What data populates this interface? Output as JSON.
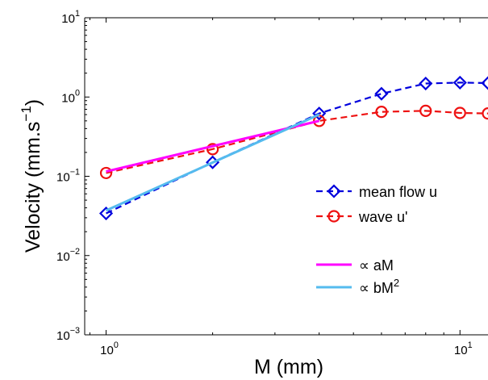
{
  "chart_data": {
    "type": "line",
    "xscale": "log",
    "yscale": "log",
    "xlim": [
      0.87,
      12
    ],
    "ylim": [
      0.001,
      10
    ],
    "x_ticks": [
      {
        "value": 1,
        "base": "10",
        "exp": "0"
      },
      {
        "value": 10,
        "base": "10",
        "exp": "1"
      }
    ],
    "y_ticks": [
      {
        "value": 0.001,
        "base": "10",
        "exp": "−3"
      },
      {
        "value": 0.01,
        "base": "10",
        "exp": "−2"
      },
      {
        "value": 0.1,
        "base": "10",
        "exp": "−1"
      },
      {
        "value": 1,
        "base": "10",
        "exp": "0"
      },
      {
        "value": 10,
        "base": "10",
        "exp": "1"
      }
    ],
    "xlabel": "M (mm)",
    "ylabel": {
      "main": "Velocity (mm.s",
      "sup": "−1",
      "close": ")"
    },
    "grid": false,
    "legend_position": "right",
    "series": [
      {
        "name": "mean flow u",
        "style": "dashed",
        "marker": "diamond",
        "color": "#0000dd",
        "x": [
          1,
          2,
          4,
          6,
          8,
          10,
          12
        ],
        "y": [
          0.034,
          0.15,
          0.62,
          1.1,
          1.48,
          1.52,
          1.5
        ]
      },
      {
        "name": "wave u'",
        "style": "dashed",
        "marker": "circle",
        "color": "#ee1111",
        "x": [
          1,
          2,
          4,
          6,
          8,
          10,
          12
        ],
        "y": [
          0.11,
          0.22,
          0.5,
          0.65,
          0.67,
          0.63,
          0.62
        ]
      },
      {
        "name": "∝ aM",
        "style": "solid",
        "marker": "none",
        "color": "#ff00ff",
        "x": [
          1,
          4
        ],
        "y": [
          0.115,
          0.5
        ]
      },
      {
        "name": "∝ bM",
        "name_sup": "2",
        "style": "solid",
        "marker": "none",
        "color": "#55bbee",
        "x": [
          1,
          4
        ],
        "y": [
          0.037,
          0.6
        ]
      }
    ]
  }
}
